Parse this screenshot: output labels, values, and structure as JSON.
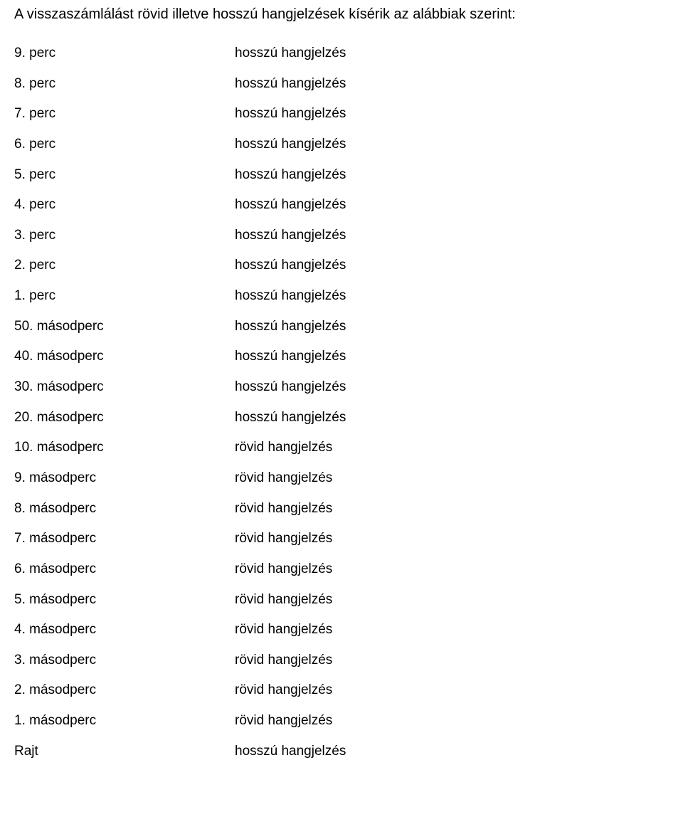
{
  "intro": "A visszaszámlálást rövid illetve hosszú hangjelzések kísérik az alábbiak szerint:",
  "rows": [
    {
      "time": "9. perc",
      "signal": "hosszú hangjelzés"
    },
    {
      "time": "8. perc",
      "signal": "hosszú hangjelzés"
    },
    {
      "time": "7. perc",
      "signal": "hosszú hangjelzés"
    },
    {
      "time": "6. perc",
      "signal": "hosszú hangjelzés"
    },
    {
      "time": "5. perc",
      "signal": "hosszú hangjelzés"
    },
    {
      "time": "4. perc",
      "signal": "hosszú hangjelzés"
    },
    {
      "time": "3. perc",
      "signal": "hosszú hangjelzés"
    },
    {
      "time": "2. perc",
      "signal": "hosszú hangjelzés"
    },
    {
      "time": "1. perc",
      "signal": "hosszú hangjelzés"
    },
    {
      "time": "50. másodperc",
      "signal": "hosszú hangjelzés"
    },
    {
      "time": "40. másodperc",
      "signal": "hosszú hangjelzés"
    },
    {
      "time": "30. másodperc",
      "signal": "hosszú hangjelzés"
    },
    {
      "time": "20. másodperc",
      "signal": "hosszú hangjelzés"
    },
    {
      "time": "10. másodperc",
      "signal": "rövid hangjelzés"
    },
    {
      "time": "9. másodperc",
      "signal": "rövid hangjelzés"
    },
    {
      "time": "8. másodperc",
      "signal": "rövid hangjelzés"
    },
    {
      "time": "7. másodperc",
      "signal": "rövid hangjelzés"
    },
    {
      "time": "6. másodperc",
      "signal": "rövid hangjelzés"
    },
    {
      "time": "5. másodperc",
      "signal": "rövid hangjelzés"
    },
    {
      "time": "4. másodperc",
      "signal": "rövid hangjelzés"
    },
    {
      "time": "3. másodperc",
      "signal": "rövid hangjelzés"
    },
    {
      "time": "2. másodperc",
      "signal": "rövid hangjelzés"
    },
    {
      "time": "1. másodperc",
      "signal": "rövid hangjelzés"
    },
    {
      "time": "Rajt",
      "signal": "hosszú hangjelzés"
    }
  ]
}
